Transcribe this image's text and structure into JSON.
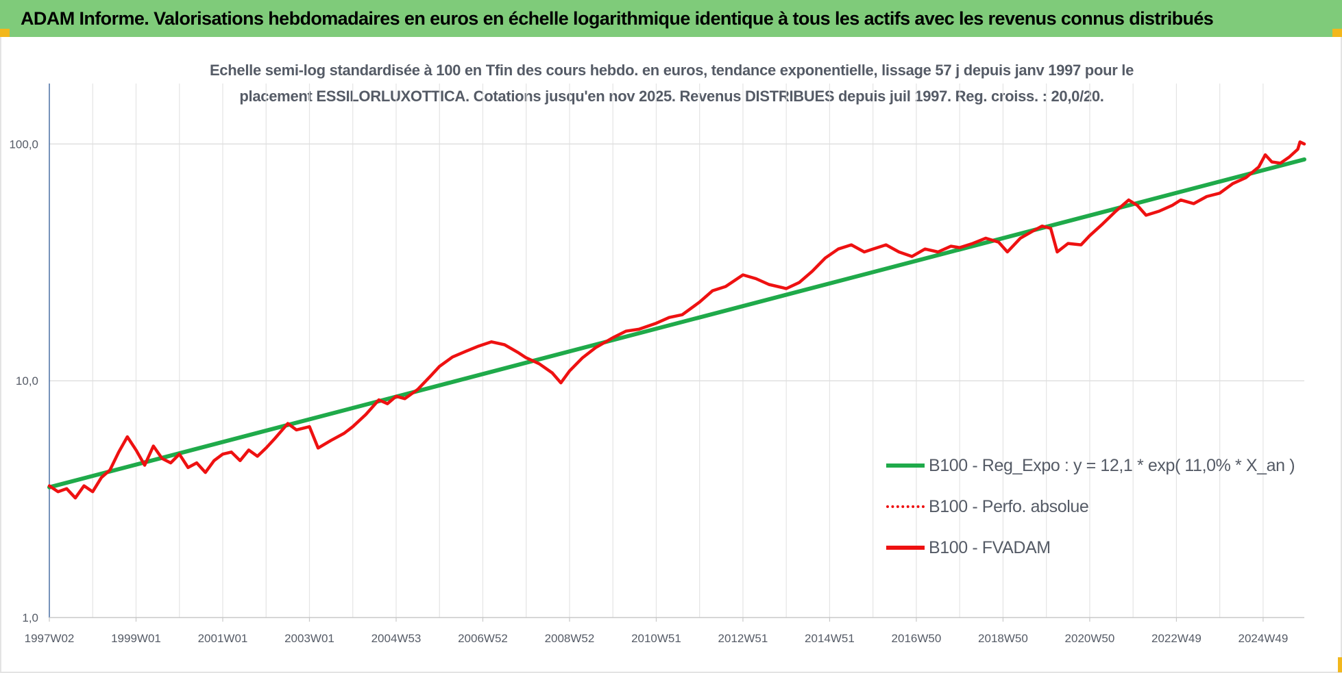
{
  "banner": {
    "title": "ADAM Informe. Valorisations hebdomadaires en euros en échelle logarithmique identique à tous les actifs avec les revenus connus distribués"
  },
  "colors": {
    "banner_bg": "#7fcb7a",
    "corner": "#f2b71c",
    "trend": "#1faa4a",
    "fvadam": "#ee1111",
    "perfo": "#ee1111"
  },
  "chart_data": {
    "type": "line",
    "title": "Echelle semi-log standardisée à 100 en Tfin des cours hebdo. en euros, tendance exponentielle, lissage 57 j depuis janv 1997 pour le placement ESSILORLUXOTTICA.  Cotations jusqu'en nov 2025. Revenus DISTRIBUES depuis juil 1997. Reg. croiss. : 20,0/20.",
    "title_lines": [
      "Echelle semi-log standardisée à 100 en Tfin des cours hebdo. en euros, tendance exponentielle, lissage 57 j depuis janv 1997 pour le",
      "placement ESSILORLUXOTTICA.  Cotations jusqu'en nov 2025. Revenus DISTRIBUES depuis juil 1997. Reg. croiss. : 20,0/20."
    ],
    "y_scale": "log",
    "ylim": [
      1,
      180
    ],
    "y_ticks": [
      {
        "value": 1,
        "label": "1,0"
      },
      {
        "value": 10,
        "label": "10,0"
      },
      {
        "value": 100,
        "label": "100,0"
      }
    ],
    "xlim": [
      1997.0,
      2025.95
    ],
    "x_ticks": [
      {
        "value": 1997.0,
        "label": "1997W02"
      },
      {
        "value": 1999.0,
        "label": "1999W01"
      },
      {
        "value": 2001.0,
        "label": "2001W01"
      },
      {
        "value": 2003.0,
        "label": "2003W01"
      },
      {
        "value": 2005.0,
        "label": "2004W53"
      },
      {
        "value": 2007.0,
        "label": "2006W52"
      },
      {
        "value": 2009.0,
        "label": "2008W52"
      },
      {
        "value": 2011.0,
        "label": "2010W51"
      },
      {
        "value": 2013.0,
        "label": "2012W51"
      },
      {
        "value": 2015.0,
        "label": "2014W51"
      },
      {
        "value": 2017.0,
        "label": "2016W50"
      },
      {
        "value": 2019.0,
        "label": "2018W50"
      },
      {
        "value": 2021.0,
        "label": "2020W50"
      },
      {
        "value": 2023.0,
        "label": "2022W49"
      },
      {
        "value": 2025.0,
        "label": "2024W49"
      }
    ],
    "grid": true,
    "legend_position": "lower-right",
    "series": [
      {
        "name": "B100 - Reg_Expo : y = 12,1 * exp( 11,0% *  X_an )",
        "style": "solid",
        "color": "#1faa4a",
        "points": [
          [
            1997.0,
            3.55
          ],
          [
            2025.95,
            86.0
          ]
        ]
      },
      {
        "name": "B100 - Perfo. absolue",
        "style": "dotted",
        "color": "#ee1111",
        "points": []
      },
      {
        "name": "B100 - FVADAM",
        "style": "solid",
        "color": "#ee1111",
        "points": [
          [
            1997.0,
            3.6
          ],
          [
            1997.2,
            3.4
          ],
          [
            1997.4,
            3.5
          ],
          [
            1997.6,
            3.2
          ],
          [
            1997.8,
            3.6
          ],
          [
            1998.0,
            3.4
          ],
          [
            1998.2,
            3.9
          ],
          [
            1998.4,
            4.2
          ],
          [
            1998.6,
            5.0
          ],
          [
            1998.8,
            5.8
          ],
          [
            1999.0,
            5.1
          ],
          [
            1999.2,
            4.4
          ],
          [
            1999.4,
            5.3
          ],
          [
            1999.6,
            4.7
          ],
          [
            1999.8,
            4.5
          ],
          [
            2000.0,
            4.9
          ],
          [
            2000.2,
            4.3
          ],
          [
            2000.4,
            4.5
          ],
          [
            2000.6,
            4.1
          ],
          [
            2000.8,
            4.6
          ],
          [
            2001.0,
            4.9
          ],
          [
            2001.2,
            5.0
          ],
          [
            2001.4,
            4.6
          ],
          [
            2001.6,
            5.1
          ],
          [
            2001.8,
            4.8
          ],
          [
            2002.0,
            5.2
          ],
          [
            2002.2,
            5.7
          ],
          [
            2002.5,
            6.6
          ],
          [
            2002.7,
            6.2
          ],
          [
            2003.0,
            6.4
          ],
          [
            2003.2,
            5.2
          ],
          [
            2003.5,
            5.6
          ],
          [
            2003.8,
            6.0
          ],
          [
            2004.0,
            6.4
          ],
          [
            2004.3,
            7.2
          ],
          [
            2004.6,
            8.3
          ],
          [
            2004.8,
            8.0
          ],
          [
            2005.0,
            8.6
          ],
          [
            2005.2,
            8.4
          ],
          [
            2005.5,
            9.2
          ],
          [
            2005.8,
            10.5
          ],
          [
            2006.0,
            11.5
          ],
          [
            2006.3,
            12.6
          ],
          [
            2006.6,
            13.3
          ],
          [
            2006.9,
            14.0
          ],
          [
            2007.2,
            14.6
          ],
          [
            2007.5,
            14.2
          ],
          [
            2007.8,
            13.2
          ],
          [
            2008.0,
            12.5
          ],
          [
            2008.3,
            11.8
          ],
          [
            2008.6,
            10.8
          ],
          [
            2008.8,
            9.8
          ],
          [
            2009.0,
            11.0
          ],
          [
            2009.3,
            12.5
          ],
          [
            2009.6,
            13.8
          ],
          [
            2010.0,
            15.2
          ],
          [
            2010.3,
            16.2
          ],
          [
            2010.6,
            16.5
          ],
          [
            2011.0,
            17.5
          ],
          [
            2011.3,
            18.5
          ],
          [
            2011.6,
            19.0
          ],
          [
            2012.0,
            21.5
          ],
          [
            2012.3,
            24.0
          ],
          [
            2012.6,
            25.0
          ],
          [
            2013.0,
            28.0
          ],
          [
            2013.3,
            27.0
          ],
          [
            2013.6,
            25.5
          ],
          [
            2014.0,
            24.5
          ],
          [
            2014.3,
            26.0
          ],
          [
            2014.6,
            29.0
          ],
          [
            2014.9,
            33.0
          ],
          [
            2015.2,
            36.0
          ],
          [
            2015.5,
            37.5
          ],
          [
            2015.8,
            35.0
          ],
          [
            2016.0,
            36.0
          ],
          [
            2016.3,
            37.5
          ],
          [
            2016.6,
            35.0
          ],
          [
            2016.9,
            33.5
          ],
          [
            2017.2,
            36.0
          ],
          [
            2017.5,
            35.0
          ],
          [
            2017.8,
            37.0
          ],
          [
            2018.0,
            36.5
          ],
          [
            2018.3,
            38.0
          ],
          [
            2018.6,
            40.0
          ],
          [
            2018.9,
            38.5
          ],
          [
            2019.1,
            35.0
          ],
          [
            2019.4,
            40.0
          ],
          [
            2019.7,
            43.0
          ],
          [
            2019.9,
            45.0
          ],
          [
            2020.1,
            44.0
          ],
          [
            2020.25,
            35.0
          ],
          [
            2020.5,
            38.0
          ],
          [
            2020.8,
            37.5
          ],
          [
            2021.0,
            41.0
          ],
          [
            2021.3,
            46.0
          ],
          [
            2021.6,
            52.0
          ],
          [
            2021.9,
            58.0
          ],
          [
            2022.1,
            55.0
          ],
          [
            2022.3,
            50.0
          ],
          [
            2022.6,
            52.0
          ],
          [
            2022.9,
            55.0
          ],
          [
            2023.1,
            58.0
          ],
          [
            2023.4,
            56.0
          ],
          [
            2023.7,
            60.0
          ],
          [
            2024.0,
            62.0
          ],
          [
            2024.3,
            68.0
          ],
          [
            2024.6,
            72.0
          ],
          [
            2024.9,
            80.0
          ],
          [
            2025.05,
            90.0
          ],
          [
            2025.2,
            84.0
          ],
          [
            2025.4,
            83.0
          ],
          [
            2025.6,
            88.0
          ],
          [
            2025.8,
            95.0
          ],
          [
            2025.85,
            102.0
          ],
          [
            2025.95,
            100.0
          ]
        ]
      }
    ]
  }
}
